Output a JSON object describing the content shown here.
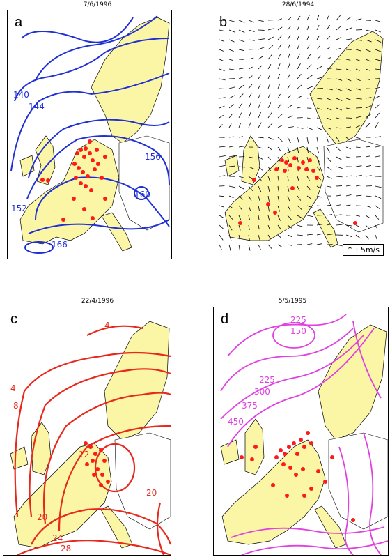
{
  "panels": [
    {
      "id": "a",
      "title": "7/6/1996",
      "letter": "a",
      "contour_color": "#1f2fd6",
      "contour_labels": [
        "140",
        "144",
        "156",
        "160",
        "152",
        "166"
      ]
    },
    {
      "id": "b",
      "title": "28/6/1994",
      "letter": "b",
      "legend": ": 5m/s"
    },
    {
      "id": "c",
      "title": "22/4/1996",
      "letter": "c",
      "contour_color": "#e8281c",
      "contour_labels": [
        "4",
        "4",
        "8",
        "20",
        "20",
        "24",
        "28",
        "12"
      ]
    },
    {
      "id": "d",
      "title": "5/5/1995",
      "letter": "d",
      "contour_color": "#e040e0",
      "contour_labels": [
        "225",
        "150",
        "225",
        "300",
        "375",
        "450"
      ]
    }
  ],
  "colors": {
    "land_highlight": "#fbf6a6",
    "points": "#ff1a1a",
    "border": "#000000"
  }
}
